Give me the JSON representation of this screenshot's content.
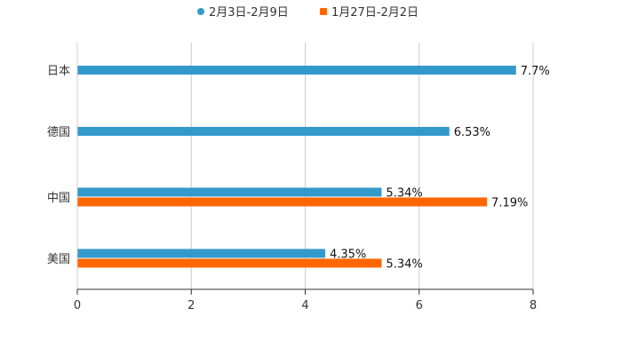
{
  "chart_data": {
    "type": "bar",
    "orientation": "horizontal",
    "title": "",
    "xlabel": "",
    "ylabel": "",
    "categories": [
      "日本",
      "德国",
      "中国",
      "美国"
    ],
    "series": [
      {
        "name": "2月3日-2月9日",
        "color": "#3399cc",
        "values": [
          7.7,
          6.53,
          5.34,
          4.35
        ],
        "labels": [
          "7.7%",
          "6.53%",
          "5.34%",
          "4.35%"
        ]
      },
      {
        "name": "1月27日-2月2日",
        "color": "#ff6600",
        "values": [
          null,
          null,
          7.19,
          5.34
        ],
        "labels": [
          null,
          null,
          "7.19%",
          "5.34%"
        ]
      }
    ],
    "xlim": [
      0,
      8
    ],
    "xticks": [
      0,
      2,
      4,
      6,
      8
    ],
    "grid": true,
    "legend_position": "top-center"
  }
}
